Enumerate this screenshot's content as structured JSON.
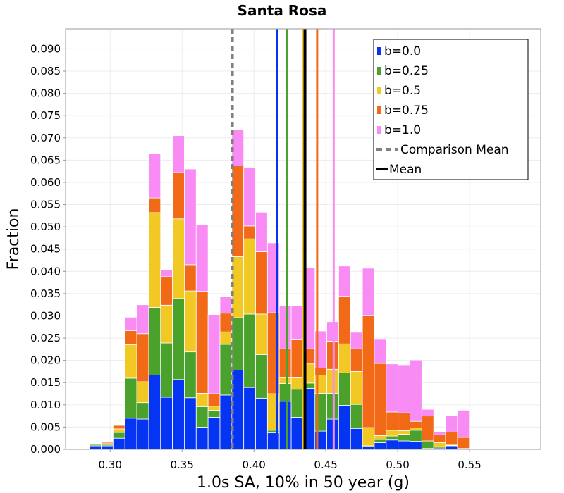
{
  "chart_data": {
    "type": "bar",
    "stacked": true,
    "title": "Santa Rosa",
    "xlabel": "1.0s SA, 10% in 50 year (g)",
    "ylabel": "Fraction",
    "xlim": [
      0.269,
      0.5995
    ],
    "ylim": [
      0.0,
      0.0945
    ],
    "xticks": [
      "0.30",
      "0.35",
      "0.40",
      "0.45",
      "0.50",
      "0.55"
    ],
    "xtick_values": [
      0.3,
      0.35,
      0.4,
      0.45,
      0.5,
      0.55
    ],
    "yticks": [
      "0.000",
      "0.005",
      "0.010",
      "0.015",
      "0.020",
      "0.025",
      "0.030",
      "0.035",
      "0.040",
      "0.045",
      "0.050",
      "0.055",
      "0.060",
      "0.065",
      "0.070",
      "0.075",
      "0.080",
      "0.085",
      "0.090"
    ],
    "ytick_values": [
      0.0,
      0.005,
      0.01,
      0.015,
      0.02,
      0.025,
      0.03,
      0.035,
      0.04,
      0.045,
      0.05,
      0.055,
      0.06,
      0.065,
      0.07,
      0.075,
      0.08,
      0.085,
      0.09
    ],
    "bin_start": 0.269,
    "bin_width": 0.00826,
    "series": [
      {
        "name": "b=0.0",
        "color": "#0534f2",
        "values": [
          0.0001,
          0.0001,
          0.0008,
          0.0008,
          0.0025,
          0.007,
          0.0068,
          0.0167,
          0.0117,
          0.0157,
          0.0116,
          0.005,
          0.0072,
          0.0122,
          0.0178,
          0.0139,
          0.0115,
          0.0037,
          0.0108,
          0.0072,
          0.0137,
          0.0041,
          0.0068,
          0.0099,
          0.0047,
          0.0006,
          0.0015,
          0.0021,
          0.0019,
          0.0018,
          0.0002,
          0.0003,
          0.0008,
          0.0001
        ]
      },
      {
        "name": "b=0.25",
        "color": "#4aa22c",
        "values": [
          0,
          0,
          0.0003,
          0.0003,
          0.0013,
          0.009,
          0.0037,
          0.0152,
          0.0122,
          0.0182,
          0.0103,
          0.0046,
          0.0016,
          0.0114,
          0.0118,
          0.0165,
          0.0098,
          0.0006,
          0.004,
          0.0063,
          0.0012,
          0.0085,
          0.0058,
          0.0073,
          0.0054,
          0.0002,
          0.0007,
          0.0009,
          0.0015,
          0.0025,
          0.0017,
          0.0003,
          0.0001,
          0.0001
        ]
      },
      {
        "name": "b=0.5",
        "color": "#f2c824",
        "values": [
          0,
          0,
          0.0001,
          0.0002,
          0.0008,
          0.0075,
          0.0047,
          0.0213,
          0.0085,
          0.0179,
          0.0137,
          0.003,
          0.0009,
          0.0028,
          0.0137,
          0.0169,
          0.0091,
          0.0082,
          0.0013,
          0.0026,
          0.0043,
          0.0041,
          0.0054,
          0.0065,
          0.0074,
          0.0041,
          0.0009,
          0.0013,
          0.0008,
          0.0005,
          0,
          0.0009,
          0.0003,
          0
        ]
      },
      {
        "name": "b=0.75",
        "color": "#f26a18",
        "values": [
          0,
          0,
          0,
          0.0003,
          0.0008,
          0.0032,
          0.0108,
          0.0033,
          0.0064,
          0.0104,
          0.0059,
          0.0229,
          0.0028,
          0.0042,
          0.0204,
          0.0029,
          0.014,
          0.0182,
          0.0065,
          0.0085,
          0.0034,
          0.0016,
          0.0063,
          0.0107,
          0.0051,
          0.0252,
          0.0162,
          0.0041,
          0.004,
          0.0015,
          0.0056,
          0.0018,
          0.0027,
          0.0025
        ]
      },
      {
        "name": "b=1.0",
        "color": "#f98cf4",
        "values": [
          0,
          0,
          0.0001,
          0.0001,
          0.0001,
          0.003,
          0.0065,
          0.0099,
          0.0016,
          0.0083,
          0.0215,
          0.015,
          0.0178,
          0.0037,
          0.0082,
          0.0132,
          0.0089,
          0.0157,
          0.0097,
          0.0076,
          0.0183,
          0.0083,
          0.0044,
          0.0068,
          0.0037,
          0.0106,
          0.0054,
          0.0108,
          0.0108,
          0.0138,
          0.0015,
          0.0006,
          0.0036,
          0.0061
        ]
      }
    ],
    "vertical_lines": [
      {
        "name": "b=0.0",
        "x": 0.416,
        "color": "#0534f2",
        "style": "solid",
        "width": 3
      },
      {
        "name": "b=0.25",
        "x": 0.423,
        "color": "#4aa22c",
        "style": "solid",
        "width": 3
      },
      {
        "name": "b=0.5",
        "x": 0.4345,
        "color": "#f2c824",
        "style": "solid",
        "width": 3
      },
      {
        "name": "b=0.75",
        "x": 0.444,
        "color": "#f26a18",
        "style": "solid",
        "width": 3
      },
      {
        "name": "b=1.0",
        "x": 0.4555,
        "color": "#f98cf4",
        "style": "solid",
        "width": 3
      },
      {
        "name": "Comparison Mean",
        "x": 0.385,
        "color": "#808080",
        "style": "dashed",
        "width": 4
      },
      {
        "name": "Mean",
        "x": 0.4355,
        "color": "#000000",
        "style": "solid",
        "width": 4
      }
    ],
    "legend": {
      "position": "top-right",
      "entries": [
        {
          "label": "b=0.0",
          "kind": "box",
          "color": "#0534f2"
        },
        {
          "label": "b=0.25",
          "kind": "box",
          "color": "#4aa22c"
        },
        {
          "label": "b=0.5",
          "kind": "box",
          "color": "#f2c824"
        },
        {
          "label": "b=0.75",
          "kind": "box",
          "color": "#f26a18"
        },
        {
          "label": "b=1.0",
          "kind": "box",
          "color": "#f98cf4"
        },
        {
          "label": "Comparison Mean",
          "kind": "dashed",
          "color": "#808080"
        },
        {
          "label": "Mean",
          "kind": "line",
          "color": "#000000"
        }
      ]
    },
    "grid": true
  }
}
